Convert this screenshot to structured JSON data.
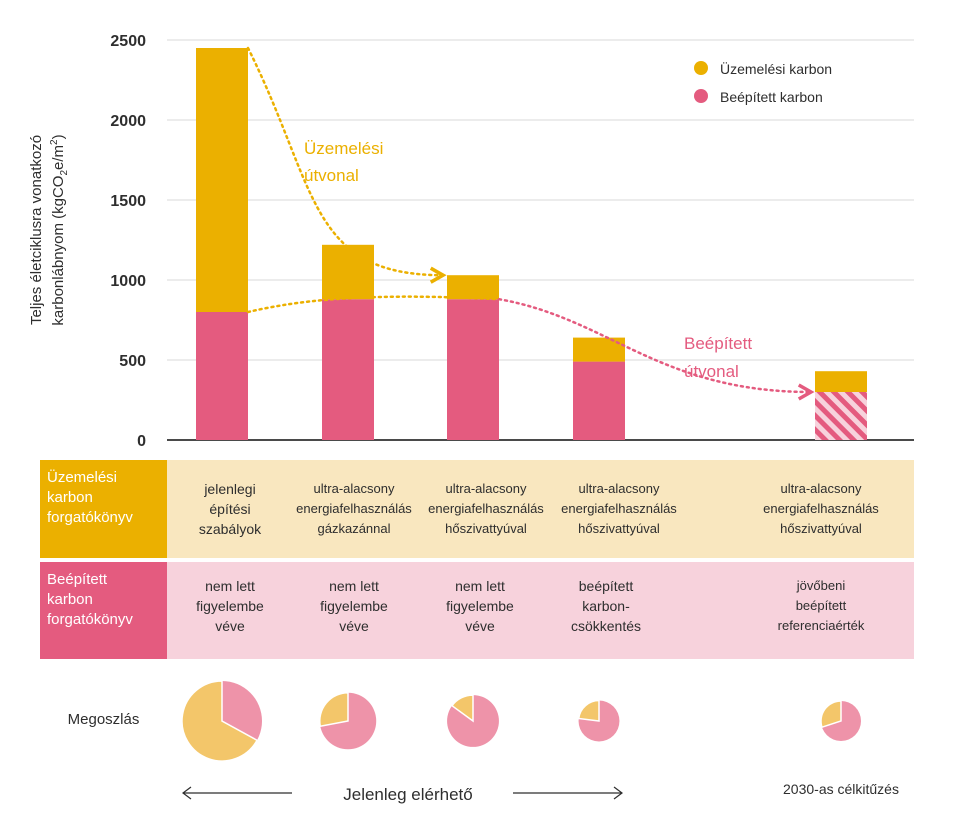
{
  "colors": {
    "operational": "#ebb000",
    "embodied": "#e45b7f",
    "operational_light": "#f9e7bf",
    "embodied_light": "#f7d2dc",
    "operational_pie": "#f3c66a",
    "embodied_pie": "#ee93a9",
    "axis": "#4a4a4a",
    "grid": "#d9d9d9"
  },
  "chart_data": {
    "type": "bar",
    "stacked": true,
    "title": "",
    "ylabel_line1": "Teljes életciklusra vonatkozó",
    "ylabel_line2": "karbonlábnyom (kgCO",
    "ylabel_sub": "2",
    "ylabel_mid": "e/m",
    "ylabel_sup": "2",
    "ylabel_end": ")",
    "ylim": [
      0,
      2500
    ],
    "yticks": [
      0,
      500,
      1000,
      1500,
      2000,
      2500
    ],
    "yticklabels": [
      "0",
      "500",
      "1000",
      "1500",
      "2000",
      "2500"
    ],
    "grid": true,
    "legend_position": "top-right",
    "series": [
      {
        "name": "Beépített karbon",
        "values": [
          800,
          880,
          880,
          490,
          300
        ],
        "hatched_last": true
      },
      {
        "name": "Üzemelési karbon",
        "values": [
          1650,
          340,
          150,
          150,
          130
        ]
      }
    ],
    "totals": [
      2450,
      1220,
      1030,
      640,
      430
    ],
    "annotations": {
      "operational_path": [
        "Üzemelési",
        "útvonal"
      ],
      "embodied_path": [
        "Beépített",
        "útvonal"
      ]
    },
    "pie_shares_operational": [
      0.67,
      0.28,
      0.15,
      0.23,
      0.3
    ]
  },
  "rows": {
    "operational_label": [
      "Üzemelési",
      "karbon",
      "forgatókönyv"
    ],
    "embodied_label": [
      "Beépített",
      "karbon",
      "forgatókönyv"
    ],
    "pie_label": "Megoszlás",
    "operational_cells": [
      [
        "jelenlegi",
        "építési",
        "szabályok"
      ],
      [
        "ultra-alacsony",
        "energiafelhasználás",
        "gázkazánnal"
      ],
      [
        "ultra-alacsony",
        "energiafelhasználás",
        "hőszivattyúval"
      ],
      [
        "ultra-alacsony",
        "energiafelhasználás",
        "hőszivattyúval"
      ],
      [
        "ultra-alacsony",
        "energiafelhasználás",
        "hőszivattyúval"
      ]
    ],
    "embodied_cells": [
      [
        "nem lett",
        "figyelembe",
        "véve"
      ],
      [
        "nem lett",
        "figyelembe",
        "véve"
      ],
      [
        "nem lett",
        "figyelembe",
        "véve"
      ],
      [
        "beépített",
        "karbon-",
        "csökkentés"
      ],
      [
        "jövőbeni",
        "beépített",
        "referenciaérték"
      ]
    ]
  },
  "footer": {
    "current": "Jelenleg elérhető",
    "target": "2030-as célkitűzés"
  }
}
